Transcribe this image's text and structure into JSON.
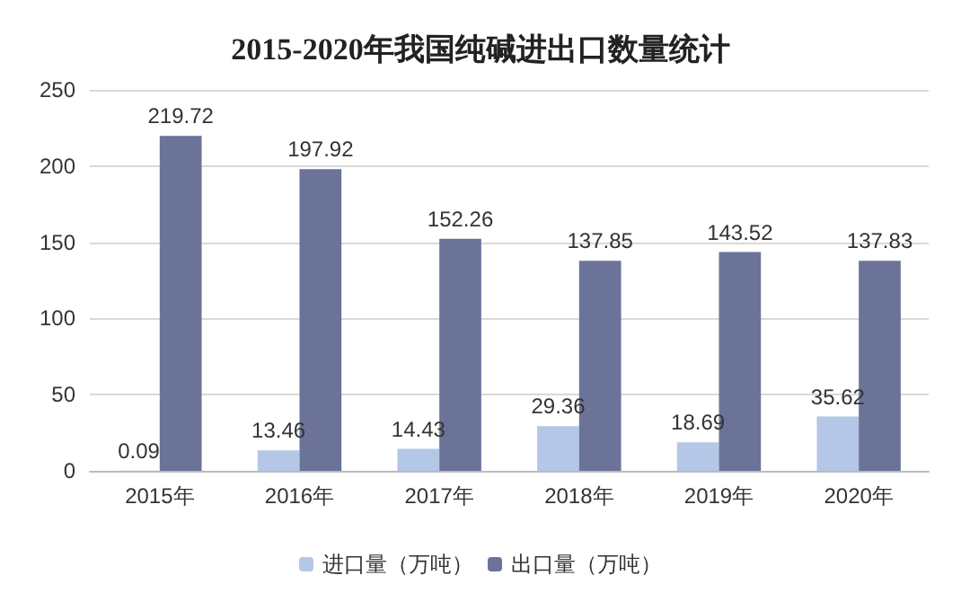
{
  "chart_data": {
    "type": "bar",
    "title": "2015-2020年我国纯碱进出口数量统计",
    "categories": [
      "2015年",
      "2016年",
      "2017年",
      "2018年",
      "2019年",
      "2020年"
    ],
    "series": [
      {
        "name": "进口量（万吨）",
        "color": "#b4c7e7",
        "values": [
          0.09,
          13.46,
          14.43,
          29.36,
          18.69,
          35.62
        ]
      },
      {
        "name": "出口量（万吨）",
        "color": "#6b7399",
        "values": [
          219.72,
          197.92,
          152.26,
          137.85,
          143.52,
          137.83
        ]
      }
    ],
    "ylim": [
      0,
      250
    ],
    "yticks": [
      0,
      50,
      100,
      150,
      200,
      250
    ],
    "grid": "y",
    "legend": "bottom",
    "data_labels": true
  }
}
